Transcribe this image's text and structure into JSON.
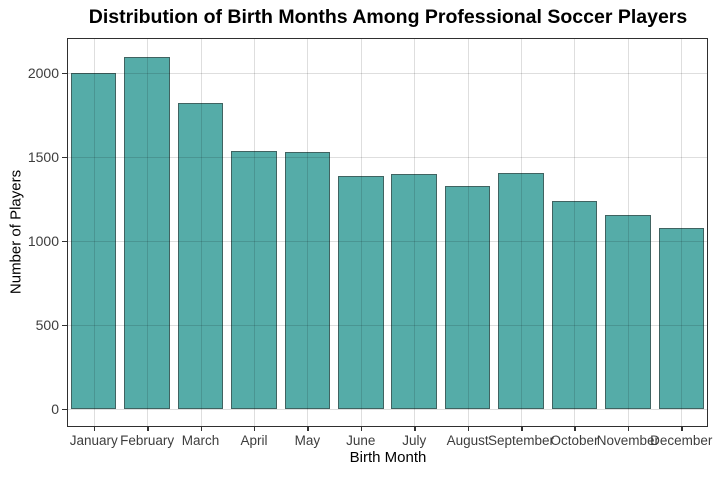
{
  "title": "Distribution of Birth Months Among Professional Soccer Players",
  "chart_data": {
    "type": "bar",
    "title": "Distribution of Birth Months Among Professional Soccer Players",
    "xlabel": "Birth Month",
    "ylabel": "Number of Players",
    "categories": [
      "January",
      "February",
      "March",
      "April",
      "May",
      "June",
      "July",
      "August",
      "September",
      "October",
      "November",
      "December"
    ],
    "values": [
      2000,
      2095,
      1818,
      1535,
      1528,
      1382,
      1398,
      1328,
      1403,
      1237,
      1150,
      1073
    ],
    "yticks": [
      0,
      500,
      1000,
      1500,
      2000
    ],
    "ylim": [
      0,
      2200
    ],
    "grid": true,
    "legend": "none",
    "bar_color": "#55ACA8",
    "bar_edge_color": "#323232",
    "gridline_color": "#d9d9d9",
    "panel_border_color": "#2f2f2f",
    "text_color": "#3d3d3d"
  }
}
